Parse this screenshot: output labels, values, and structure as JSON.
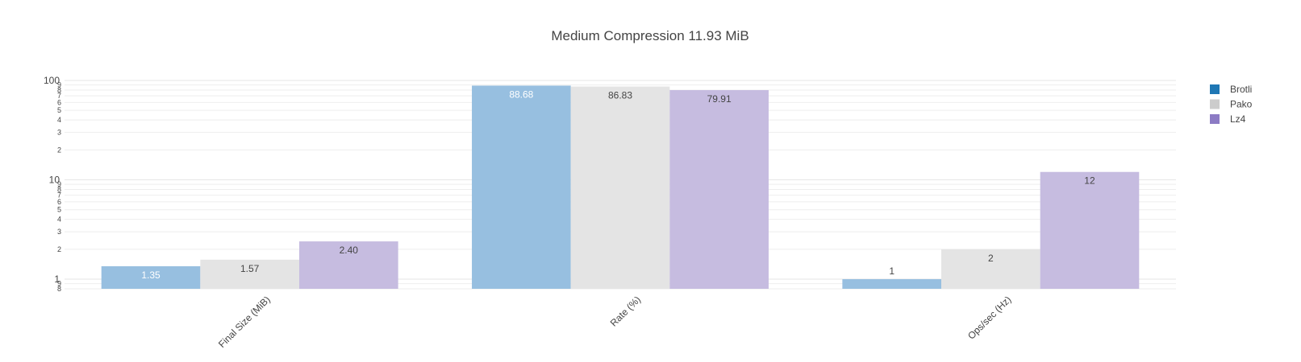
{
  "chart_data": {
    "type": "bar",
    "title": "Medium Compression 11.93 MiB",
    "xlabel": "",
    "ylabel": "",
    "yscale": "log",
    "ylim": [
      0.8,
      100
    ],
    "grid": true,
    "legend_position": "top-right",
    "categories": [
      "Final Size (MiB)",
      "Rate (%)",
      "Ops/sec (Hz)"
    ],
    "y_major_ticks": [
      {
        "value": 1,
        "label": "1"
      },
      {
        "value": 10,
        "label": "10"
      },
      {
        "value": 100,
        "label": "100"
      }
    ],
    "y_minor_ticks": [
      {
        "value": 0.8,
        "label": "8"
      },
      {
        "value": 0.9,
        "label": "9"
      },
      {
        "value": 2,
        "label": "2"
      },
      {
        "value": 3,
        "label": "3"
      },
      {
        "value": 4,
        "label": "4"
      },
      {
        "value": 5,
        "label": "5"
      },
      {
        "value": 6,
        "label": "6"
      },
      {
        "value": 7,
        "label": "7"
      },
      {
        "value": 8,
        "label": "8"
      },
      {
        "value": 9,
        "label": "9"
      },
      {
        "value": 20,
        "label": "2"
      },
      {
        "value": 30,
        "label": "3"
      },
      {
        "value": 40,
        "label": "4"
      },
      {
        "value": 50,
        "label": "5"
      },
      {
        "value": 60,
        "label": "6"
      },
      {
        "value": 70,
        "label": "7"
      },
      {
        "value": 80,
        "label": "8"
      },
      {
        "value": 90,
        "label": "9"
      }
    ],
    "series": [
      {
        "name": "Brotli",
        "color": "#1f77b4",
        "fill": "#97bfe0",
        "text_color": "#ffffff",
        "values": [
          1.35,
          88.68,
          1
        ],
        "labels": [
          "1.35",
          "88.68",
          "1"
        ]
      },
      {
        "name": "Pako",
        "color": "#cccccc",
        "fill": "#e4e4e4",
        "text_color": "#444444",
        "values": [
          1.57,
          86.83,
          2
        ],
        "labels": [
          "1.57",
          "86.83",
          "2"
        ]
      },
      {
        "name": "Lz4",
        "color": "#8c7bc4",
        "fill": "#c6bce0",
        "text_color": "#444444",
        "values": [
          2.4,
          79.91,
          12
        ],
        "labels": [
          "2.40",
          "79.91",
          "12"
        ]
      }
    ]
  }
}
